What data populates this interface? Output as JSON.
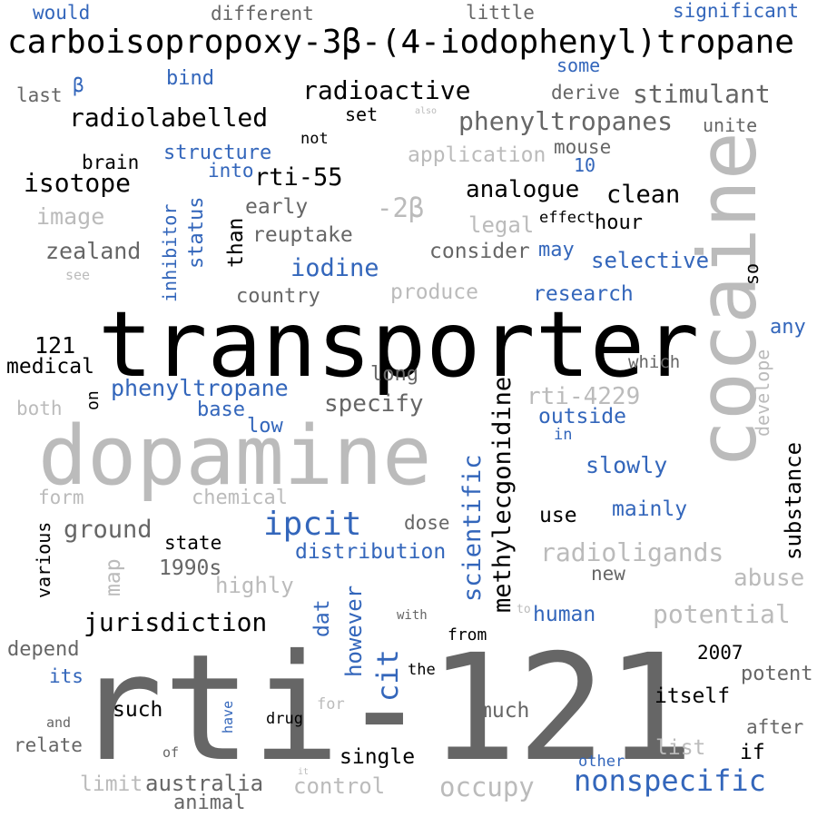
{
  "palette": {
    "black": "#000000",
    "dark_gray": "#666666",
    "light_gray": "#bbbbbb",
    "blue": "#3366bb"
  },
  "words": [
    {
      "text": "transporter",
      "color": "black"
    },
    {
      "text": "rti-121",
      "color": "dark_gray"
    },
    {
      "text": "dopamine",
      "color": "light_gray"
    },
    {
      "text": "cocaine",
      "color": "light_gray",
      "vertical": true
    },
    {
      "text": "carboisopropoxy-3β-(4-iodophenyl)tropane",
      "color": "black"
    },
    {
      "text": "ipcit",
      "color": "blue"
    },
    {
      "text": "methylecgonidine",
      "color": "black",
      "vertical": true
    },
    {
      "text": "nonspecific",
      "color": "blue"
    },
    {
      "text": "phenyltropanes",
      "color": "dark_gray"
    },
    {
      "text": "radiolabelled",
      "color": "black"
    },
    {
      "text": "radioactive",
      "color": "black"
    },
    {
      "text": "stimulant",
      "color": "dark_gray"
    },
    {
      "text": "rti-55",
      "color": "black"
    },
    {
      "text": "isotope",
      "color": "black"
    },
    {
      "text": "analogue",
      "color": "black"
    },
    {
      "text": "clean",
      "color": "black"
    },
    {
      "text": "iodine",
      "color": "blue"
    },
    {
      "text": "selective",
      "color": "blue"
    },
    {
      "text": "research",
      "color": "blue"
    },
    {
      "text": "phenyltropane",
      "color": "blue"
    },
    {
      "text": "specify",
      "color": "dark_gray"
    },
    {
      "text": "rti-4229",
      "color": "light_gray"
    },
    {
      "text": "outside",
      "color": "blue"
    },
    {
      "text": "slowly",
      "color": "blue"
    },
    {
      "text": "radioligands",
      "color": "light_gray"
    },
    {
      "text": "potential",
      "color": "light_gray"
    },
    {
      "text": "abuse",
      "color": "light_gray"
    },
    {
      "text": "jurisdiction",
      "color": "black"
    },
    {
      "text": "ground",
      "color": "dark_gray"
    },
    {
      "text": "distribution",
      "color": "blue"
    },
    {
      "text": "scientific",
      "color": "blue",
      "vertical": true
    },
    {
      "text": "cit",
      "color": "blue",
      "vertical": true
    },
    {
      "text": "substance",
      "color": "black",
      "vertical": true
    },
    {
      "text": "occupy",
      "color": "light_gray"
    },
    {
      "text": "zealand",
      "color": "dark_gray"
    },
    {
      "text": "reuptake",
      "color": "dark_gray"
    },
    {
      "text": "-2β",
      "color": "light_gray"
    },
    {
      "text": "image",
      "color": "light_gray"
    },
    {
      "text": "would",
      "color": "blue"
    },
    {
      "text": "different",
      "color": "dark_gray"
    },
    {
      "text": "little",
      "color": "dark_gray"
    },
    {
      "text": "significant",
      "color": "blue"
    },
    {
      "text": "some",
      "color": "blue"
    },
    {
      "text": "last",
      "color": "dark_gray"
    },
    {
      "text": "β",
      "color": "blue"
    },
    {
      "text": "bind",
      "color": "blue"
    },
    {
      "text": "derive",
      "color": "dark_gray"
    },
    {
      "text": "set",
      "color": "black"
    },
    {
      "text": "also",
      "color": "light_gray"
    },
    {
      "text": "unite",
      "color": "dark_gray"
    },
    {
      "text": "not",
      "color": "black"
    },
    {
      "text": "structure",
      "color": "blue"
    },
    {
      "text": "brain",
      "color": "black"
    },
    {
      "text": "application",
      "color": "light_gray"
    },
    {
      "text": "mouse",
      "color": "dark_gray"
    },
    {
      "text": "into",
      "color": "blue"
    },
    {
      "text": "10",
      "color": "blue"
    },
    {
      "text": "early",
      "color": "dark_gray"
    },
    {
      "text": "effect",
      "color": "black"
    },
    {
      "text": "hour",
      "color": "black"
    },
    {
      "text": "legal",
      "color": "light_gray"
    },
    {
      "text": "consider",
      "color": "dark_gray"
    },
    {
      "text": "may",
      "color": "blue"
    },
    {
      "text": "inhibitor",
      "color": "blue",
      "vertical": true
    },
    {
      "text": "status",
      "color": "blue",
      "vertical": true
    },
    {
      "text": "than",
      "color": "black",
      "vertical": true
    },
    {
      "text": "so",
      "color": "black",
      "vertical": true
    },
    {
      "text": "see",
      "color": "light_gray"
    },
    {
      "text": "country",
      "color": "dark_gray"
    },
    {
      "text": "produce",
      "color": "light_gray"
    },
    {
      "text": "any",
      "color": "blue"
    },
    {
      "text": "121",
      "color": "black"
    },
    {
      "text": "medical",
      "color": "black"
    },
    {
      "text": "which",
      "color": "dark_gray"
    },
    {
      "text": "long",
      "color": "dark_gray"
    },
    {
      "text": "develope",
      "color": "light_gray",
      "vertical": true
    },
    {
      "text": "on",
      "color": "black",
      "vertical": true
    },
    {
      "text": "both",
      "color": "light_gray"
    },
    {
      "text": "base",
      "color": "blue"
    },
    {
      "text": "low",
      "color": "blue"
    },
    {
      "text": "in",
      "color": "blue"
    },
    {
      "text": "form",
      "color": "light_gray"
    },
    {
      "text": "chemical",
      "color": "light_gray"
    },
    {
      "text": "use",
      "color": "black"
    },
    {
      "text": "mainly",
      "color": "blue"
    },
    {
      "text": "various",
      "color": "black",
      "vertical": true
    },
    {
      "text": "state",
      "color": "black"
    },
    {
      "text": "dose",
      "color": "dark_gray"
    },
    {
      "text": "map",
      "color": "light_gray",
      "vertical": true
    },
    {
      "text": "1990s",
      "color": "dark_gray"
    },
    {
      "text": "new",
      "color": "dark_gray"
    },
    {
      "text": "highly",
      "color": "light_gray"
    },
    {
      "text": "dat",
      "color": "blue",
      "vertical": true
    },
    {
      "text": "however",
      "color": "blue",
      "vertical": true
    },
    {
      "text": "with",
      "color": "dark_gray"
    },
    {
      "text": "to",
      "color": "light_gray"
    },
    {
      "text": "human",
      "color": "blue"
    },
    {
      "text": "from",
      "color": "black"
    },
    {
      "text": "depend",
      "color": "dark_gray"
    },
    {
      "text": "2007",
      "color": "black"
    },
    {
      "text": "its",
      "color": "blue"
    },
    {
      "text": "the",
      "color": "black"
    },
    {
      "text": "potent",
      "color": "dark_gray"
    },
    {
      "text": "itself",
      "color": "black"
    },
    {
      "text": "such",
      "color": "black"
    },
    {
      "text": "have",
      "color": "blue",
      "vertical": true
    },
    {
      "text": "drug",
      "color": "black"
    },
    {
      "text": "for",
      "color": "light_gray"
    },
    {
      "text": "much",
      "color": "dark_gray"
    },
    {
      "text": "and",
      "color": "dark_gray"
    },
    {
      "text": "after",
      "color": "dark_gray"
    },
    {
      "text": "relate",
      "color": "dark_gray"
    },
    {
      "text": "list",
      "color": "light_gray"
    },
    {
      "text": "if",
      "color": "black"
    },
    {
      "text": "of",
      "color": "dark_gray"
    },
    {
      "text": "single",
      "color": "black"
    },
    {
      "text": "other",
      "color": "blue"
    },
    {
      "text": "it",
      "color": "light_gray"
    },
    {
      "text": "limit",
      "color": "light_gray"
    },
    {
      "text": "australia",
      "color": "dark_gray"
    },
    {
      "text": "control",
      "color": "light_gray"
    },
    {
      "text": "animal",
      "color": "dark_gray"
    }
  ]
}
